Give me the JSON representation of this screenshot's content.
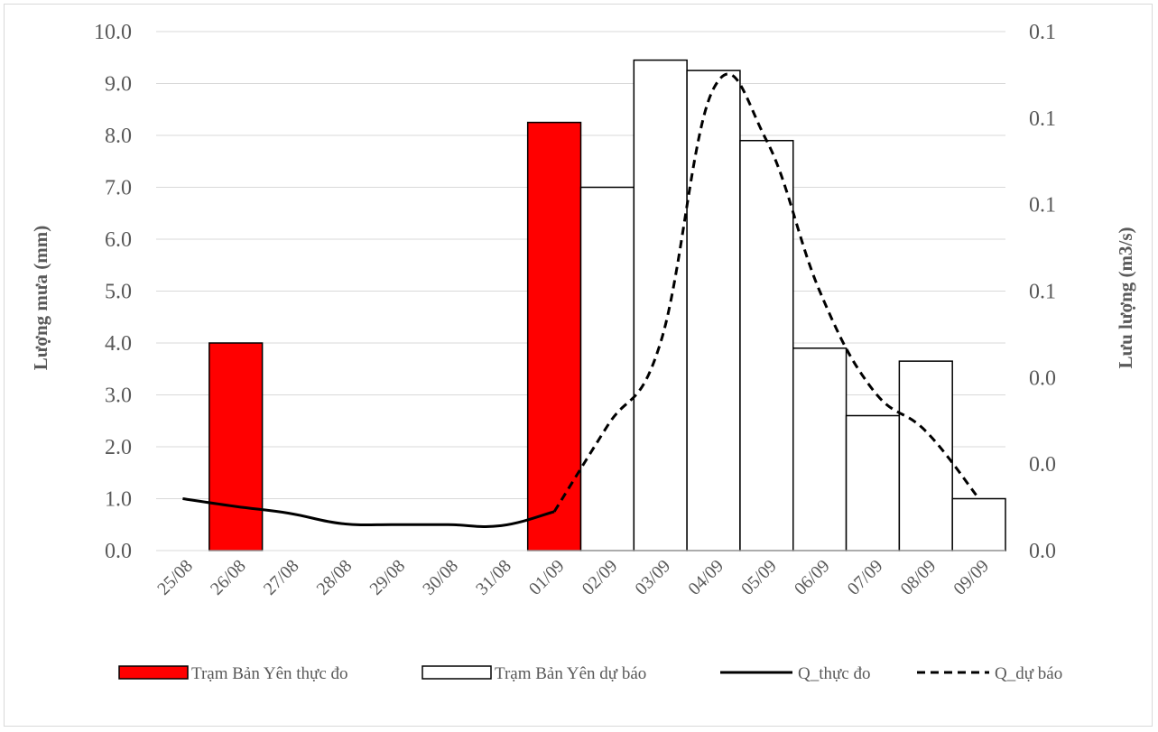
{
  "chart_data": {
    "type": "bar",
    "title": "",
    "categories": [
      "25/08",
      "26/08",
      "27/08",
      "28/08",
      "29/08",
      "30/08",
      "31/08",
      "01/09",
      "02/09",
      "03/09",
      "04/09",
      "05/09",
      "06/09",
      "07/09",
      "08/09",
      "09/09"
    ],
    "y_left": {
      "label": "Lượng mưa (mm)",
      "range": [
        0,
        10
      ],
      "ticks": [
        "0.0",
        "1.0",
        "2.0",
        "3.0",
        "4.0",
        "5.0",
        "6.0",
        "7.0",
        "8.0",
        "9.0",
        "10.0"
      ]
    },
    "y_right": {
      "label": "Lưu lượng (m3/s)",
      "tick_labels": [
        "0.0",
        "0.0",
        "0.0",
        "0.1",
        "0.1",
        "0.1",
        "0.1"
      ]
    },
    "grid": true,
    "legend_position": "bottom",
    "bar_series": [
      {
        "name": "Trạm Bản Yên thực đo",
        "color": "#ff0000",
        "values": [
          null,
          4.0,
          null,
          null,
          null,
          null,
          null,
          8.25,
          null,
          null,
          null,
          null,
          null,
          null,
          null,
          null
        ]
      },
      {
        "name": "Trạm Bản Yên dự báo",
        "color": "#ffffff",
        "values": [
          null,
          null,
          null,
          null,
          null,
          null,
          null,
          null,
          7.0,
          9.45,
          9.25,
          7.9,
          3.9,
          2.6,
          3.65,
          1.0
        ]
      }
    ],
    "line_series": [
      {
        "name": "Q_thực đo",
        "style": "solid",
        "color": "#000000",
        "values": [
          1.0,
          0.85,
          0.72,
          0.52,
          0.5,
          0.5,
          0.48,
          0.75,
          null,
          null,
          null,
          null,
          null,
          null,
          null,
          null
        ]
      },
      {
        "name": "Q_dự báo",
        "style": "dashed",
        "color": "#000000",
        "values": [
          null,
          null,
          null,
          null,
          null,
          null,
          null,
          0.75,
          2.4,
          4.0,
          8.9,
          7.9,
          5.0,
          3.1,
          2.3,
          1.0
        ]
      }
    ]
  }
}
